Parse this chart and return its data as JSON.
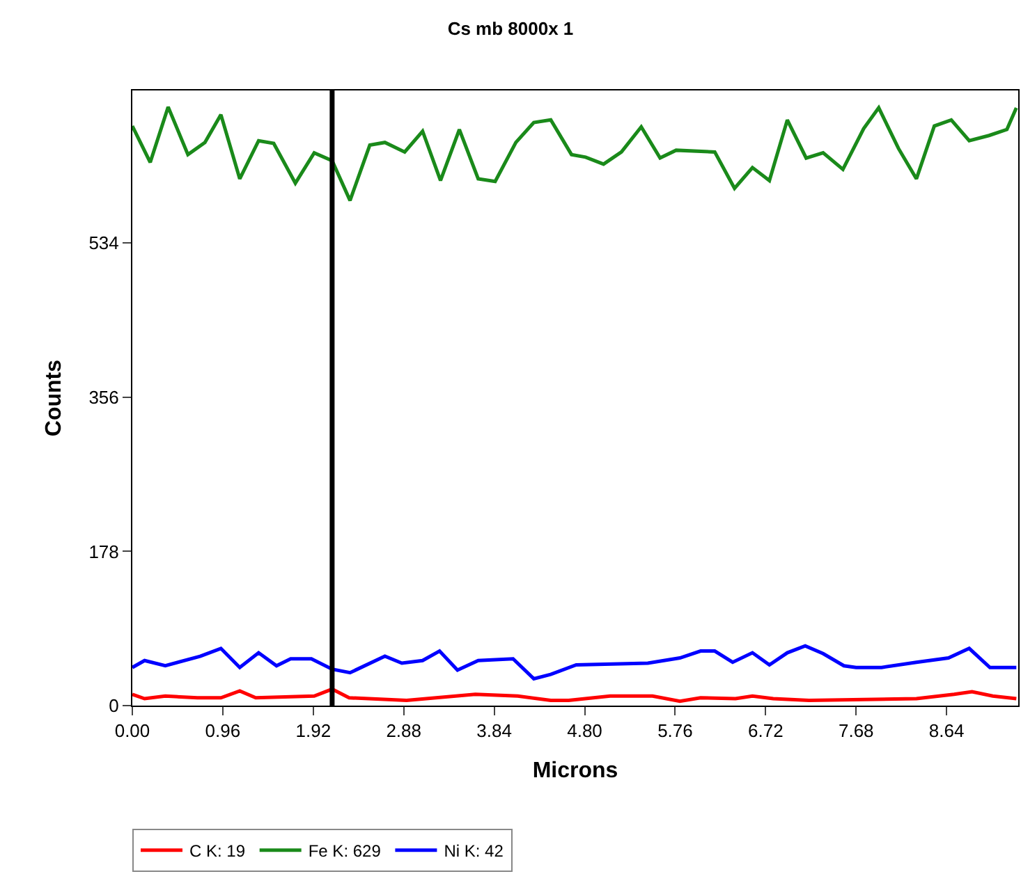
{
  "chart_data": {
    "type": "line",
    "title": "Cs mb 8000x 1",
    "xlabel": "Microns",
    "ylabel": "Counts",
    "xlim": [
      0,
      9.4
    ],
    "xticks": [
      {
        "value": 0,
        "label": "0.00"
      },
      0.96,
      1.92,
      2.88,
      3.84,
      {
        "value": 4.8,
        "label": "4.80"
      },
      5.76,
      6.72,
      7.68,
      8.64
    ],
    "ylim": [
      0,
      710
    ],
    "yticks": [
      0,
      178,
      356,
      534
    ],
    "legend": "bottom left",
    "marker": "none",
    "line_style": "solid",
    "ref_lines": [
      {
        "axis": "x",
        "value": 2.12,
        "color": "#000000"
      }
    ],
    "series": [
      {
        "name": "C K: 19",
        "color": "#ff0000",
        "x": [
          0,
          0.13,
          0.35,
          0.69,
          0.94,
          1.14,
          1.31,
          1.93,
          2.12,
          2.3,
          2.91,
          3.64,
          4.09,
          4.44,
          4.63,
          5.07,
          5.52,
          5.81,
          6.03,
          6.4,
          6.58,
          6.8,
          7.18,
          8.32,
          8.72,
          8.91,
          9.13,
          9.38
        ],
        "values": [
          13,
          8,
          11,
          9,
          9,
          17,
          9,
          11,
          19,
          9,
          6,
          13,
          11,
          6,
          6,
          11,
          11,
          5,
          9,
          8,
          11,
          8,
          6,
          8,
          13,
          16,
          11,
          8
        ]
      },
      {
        "name": "Fe K: 629",
        "color": "#1a8a1a",
        "x": [
          0,
          0.19,
          0.38,
          0.59,
          0.77,
          0.94,
          1.14,
          1.34,
          1.5,
          1.73,
          1.93,
          2.12,
          2.31,
          2.52,
          2.68,
          2.89,
          3.08,
          3.27,
          3.47,
          3.67,
          3.85,
          4.07,
          4.26,
          4.44,
          4.66,
          4.81,
          5.0,
          5.19,
          5.4,
          5.6,
          5.77,
          6.18,
          6.39,
          6.58,
          6.76,
          6.95,
          7.15,
          7.33,
          7.54,
          7.76,
          7.92,
          8.13,
          8.32,
          8.51,
          8.69,
          8.88,
          9.09,
          9.28,
          9.38
        ],
        "values": [
          669,
          627,
          691,
          636,
          650,
          682,
          608,
          652,
          649,
          603,
          638,
          629,
          583,
          647,
          650,
          639,
          663,
          606,
          665,
          608,
          605,
          650,
          673,
          676,
          636,
          633,
          625,
          639,
          668,
          632,
          641,
          639,
          597,
          621,
          606,
          676,
          632,
          638,
          619,
          666,
          690,
          643,
          608,
          669,
          676,
          652,
          658,
          665,
          690
        ]
      },
      {
        "name": "Ni K: 42",
        "color": "#0000ff",
        "x": [
          0,
          0.13,
          0.35,
          0.72,
          0.94,
          1.14,
          1.34,
          1.53,
          1.68,
          1.9,
          2.12,
          2.31,
          2.68,
          2.86,
          3.08,
          3.26,
          3.45,
          3.67,
          4.04,
          4.26,
          4.44,
          4.71,
          5.47,
          5.81,
          6.03,
          6.18,
          6.37,
          6.58,
          6.76,
          6.95,
          7.14,
          7.33,
          7.55,
          7.68,
          7.95,
          8.32,
          8.66,
          8.88,
          9.1,
          9.38
        ],
        "values": [
          44,
          52,
          46,
          57,
          66,
          44,
          61,
          46,
          54,
          54,
          42,
          38,
          57,
          49,
          52,
          63,
          41,
          52,
          54,
          31,
          36,
          47,
          49,
          55,
          63,
          63,
          50,
          61,
          47,
          61,
          69,
          60,
          46,
          44,
          44,
          50,
          55,
          66,
          44,
          44
        ]
      }
    ]
  }
}
